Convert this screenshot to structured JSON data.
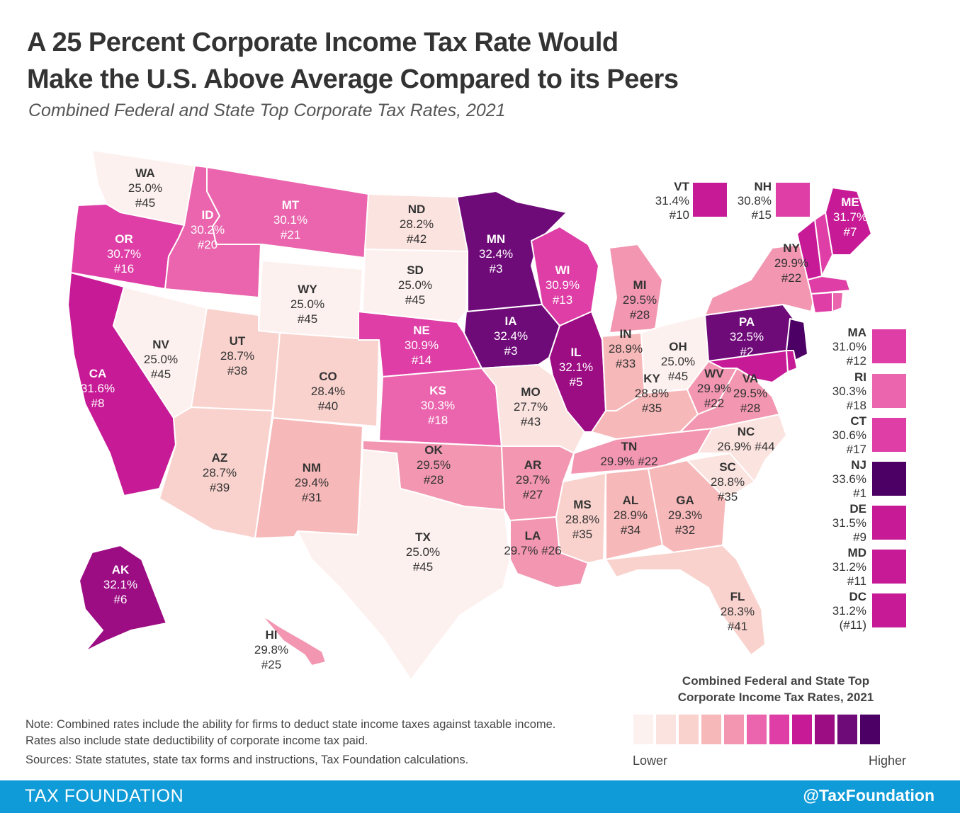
{
  "title_line1": "A 25 Percent Corporate Income Tax Rate Would",
  "title_line2": "Make the U.S. Above Average Compared to its Peers",
  "subtitle": "Combined Federal and State Top Corporate Tax Rates, 2021",
  "note": "Note: Combined rates include the ability for firms to deduct state income taxes against taxable income. Rates also include state deductibility of corporate income tax paid.",
  "sources": "Sources: State statutes, state tax forms and instructions, Tax Foundation calculations.",
  "legend": {
    "title_line1": "Combined Federal and State Top",
    "title_line2": "Corporate Income Tax Rates, 2021",
    "low_label": "Lower",
    "high_label": "Higher",
    "colors": [
      "#fdf1ef",
      "#fbe3df",
      "#f9d2cd",
      "#f7b8b9",
      "#f296b1",
      "#ea65ad",
      "#de3ea5",
      "#c71a96",
      "#9c0c83",
      "#6f0a79",
      "#4c0065"
    ]
  },
  "footer": {
    "brand": "TAX FOUNDATION",
    "handle": "@TaxFoundation"
  },
  "states": [
    {
      "abbr": "WA",
      "rate": "25.0%",
      "rank": "#45",
      "color": "#fdf1ef"
    },
    {
      "abbr": "OR",
      "rate": "30.7%",
      "rank": "#16",
      "color": "#de3ea5"
    },
    {
      "abbr": "CA",
      "rate": "31.6%",
      "rank": "#8",
      "color": "#c71a96"
    },
    {
      "abbr": "NV",
      "rate": "25.0%",
      "rank": "#45",
      "color": "#fdf1ef"
    },
    {
      "abbr": "ID",
      "rate": "30.2%",
      "rank": "#20",
      "color": "#ea65ad"
    },
    {
      "abbr": "MT",
      "rate": "30.1%",
      "rank": "#21",
      "color": "#ea65ad"
    },
    {
      "abbr": "WY",
      "rate": "25.0%",
      "rank": "#45",
      "color": "#fdf1ef"
    },
    {
      "abbr": "UT",
      "rate": "28.7%",
      "rank": "#38",
      "color": "#f9d2cd"
    },
    {
      "abbr": "AZ",
      "rate": "28.7%",
      "rank": "#39",
      "color": "#f9d2cd"
    },
    {
      "abbr": "CO",
      "rate": "28.4%",
      "rank": "#40",
      "color": "#f9d2cd"
    },
    {
      "abbr": "NM",
      "rate": "29.4%",
      "rank": "#31",
      "color": "#f7b8b9"
    },
    {
      "abbr": "ND",
      "rate": "28.2%",
      "rank": "#42",
      "color": "#fbe3df"
    },
    {
      "abbr": "SD",
      "rate": "25.0%",
      "rank": "#45",
      "color": "#fdf1ef"
    },
    {
      "abbr": "NE",
      "rate": "30.9%",
      "rank": "#14",
      "color": "#de3ea5"
    },
    {
      "abbr": "KS",
      "rate": "30.3%",
      "rank": "#18",
      "color": "#ea65ad"
    },
    {
      "abbr": "OK",
      "rate": "29.5%",
      "rank": "#28",
      "color": "#f296b1"
    },
    {
      "abbr": "TX",
      "rate": "25.0%",
      "rank": "#45",
      "color": "#fdf1ef"
    },
    {
      "abbr": "MN",
      "rate": "32.4%",
      "rank": "#3",
      "color": "#6f0a79"
    },
    {
      "abbr": "IA",
      "rate": "32.4%",
      "rank": "#3",
      "color": "#6f0a79"
    },
    {
      "abbr": "MO",
      "rate": "27.7%",
      "rank": "#43",
      "color": "#fbe3df"
    },
    {
      "abbr": "AR",
      "rate": "29.7%",
      "rank": "#27",
      "color": "#f296b1"
    },
    {
      "abbr": "LA",
      "rate": "29.7%",
      "rank": "#26",
      "color": "#f296b1"
    },
    {
      "abbr": "WI",
      "rate": "30.9%",
      "rank": "#13",
      "color": "#de3ea5"
    },
    {
      "abbr": "IL",
      "rate": "32.1%",
      "rank": "#5",
      "color": "#9c0c83"
    },
    {
      "abbr": "MI",
      "rate": "29.5%",
      "rank": "#28",
      "color": "#f296b1"
    },
    {
      "abbr": "IN",
      "rate": "28.9%",
      "rank": "#33",
      "color": "#f7b8b9"
    },
    {
      "abbr": "OH",
      "rate": "25.0%",
      "rank": "#45",
      "color": "#fdf1ef"
    },
    {
      "abbr": "KY",
      "rate": "28.8%",
      "rank": "#35",
      "color": "#f7b8b9"
    },
    {
      "abbr": "TN",
      "rate": "29.9%",
      "rank": "#22",
      "color": "#f296b1"
    },
    {
      "abbr": "MS",
      "rate": "28.8%",
      "rank": "#35",
      "color": "#f9d2cd"
    },
    {
      "abbr": "AL",
      "rate": "28.9%",
      "rank": "#34",
      "color": "#f7b8b9"
    },
    {
      "abbr": "GA",
      "rate": "29.3%",
      "rank": "#32",
      "color": "#f7b8b9"
    },
    {
      "abbr": "FL",
      "rate": "28.3%",
      "rank": "#41",
      "color": "#f9d2cd"
    },
    {
      "abbr": "SC",
      "rate": "28.8%",
      "rank": "#35",
      "color": "#fbe3df"
    },
    {
      "abbr": "NC",
      "rate": "26.9%",
      "rank": "#44",
      "color": "#fbe3df"
    },
    {
      "abbr": "VA",
      "rate": "29.5%",
      "rank": "#28",
      "color": "#f296b1"
    },
    {
      "abbr": "WV",
      "rate": "29.9%",
      "rank": "#22",
      "color": "#f296b1"
    },
    {
      "abbr": "PA",
      "rate": "32.5%",
      "rank": "#2",
      "color": "#6f0a79"
    },
    {
      "abbr": "NY",
      "rate": "29.9%",
      "rank": "#22",
      "color": "#f296b1"
    },
    {
      "abbr": "ME",
      "rate": "31.7%",
      "rank": "#7",
      "color": "#c71a96"
    },
    {
      "abbr": "AK",
      "rate": "32.1%",
      "rank": "#6",
      "color": "#9c0c83"
    },
    {
      "abbr": "HI",
      "rate": "29.8%",
      "rank": "#25",
      "color": "#f296b1"
    }
  ],
  "insets": [
    {
      "abbr": "VT",
      "rate": "31.4%",
      "rank": "#10",
      "color": "#c71a96"
    },
    {
      "abbr": "NH",
      "rate": "30.8%",
      "rank": "#15",
      "color": "#de3ea5"
    },
    {
      "abbr": "MA",
      "rate": "31.0%",
      "rank": "#12",
      "color": "#de3ea5"
    },
    {
      "abbr": "RI",
      "rate": "30.3%",
      "rank": "#18",
      "color": "#ea65ad"
    },
    {
      "abbr": "CT",
      "rate": "30.6%",
      "rank": "#17",
      "color": "#de3ea5"
    },
    {
      "abbr": "NJ",
      "rate": "33.6%",
      "rank": "#1",
      "color": "#4c0065"
    },
    {
      "abbr": "DE",
      "rate": "31.5%",
      "rank": "#9",
      "color": "#c71a96"
    },
    {
      "abbr": "MD",
      "rate": "31.2%",
      "rank": "#11",
      "color": "#c71a96"
    },
    {
      "abbr": "DC",
      "rate": "31.2%",
      "rank": "(#11)",
      "color": "#c71a96"
    }
  ]
}
